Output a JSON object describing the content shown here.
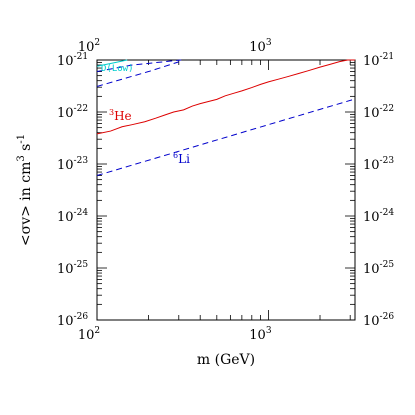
{
  "chart_data": {
    "type": "line",
    "x_scale": "log",
    "y_scale": "log",
    "xlim": [
      100,
      3200
    ],
    "ylim": [
      1e-26,
      1e-21
    ],
    "xlabel": {
      "main": "m",
      "unit": "(GeV)"
    },
    "ylabel": {
      "pre": "<σv> in cm",
      "sup1": "3",
      "mid": " s",
      "sup2": "-1"
    },
    "x_ticks": [
      {
        "value": 100,
        "base": "10",
        "exp": "2"
      },
      {
        "value": 1000,
        "base": "10",
        "exp": "3"
      }
    ],
    "y_ticks": [
      {
        "value": 1e-26,
        "base": "10",
        "exp": "-26"
      },
      {
        "value": 1e-25,
        "base": "10",
        "exp": "-25"
      },
      {
        "value": 1e-24,
        "base": "10",
        "exp": "-24"
      },
      {
        "value": 1e-23,
        "base": "10",
        "exp": "-23"
      },
      {
        "value": 1e-22,
        "base": "10",
        "exp": "-22"
      },
      {
        "value": 1e-21,
        "base": "10",
        "exp": "-21"
      }
    ],
    "grid": false,
    "series": [
      {
        "name": "3He",
        "label_sup": "3",
        "label_base": "He",
        "color": "#dd0000",
        "dash": "solid",
        "x": [
          100,
          120,
          140,
          160,
          190,
          220,
          250,
          280,
          320,
          360,
          400,
          450,
          500,
          560,
          630,
          700,
          800,
          900,
          1000,
          1150,
          1300,
          1500,
          1700,
          2000,
          2300,
          2600,
          2900,
          3200
        ],
        "y": [
          3.8e-23,
          4.3e-23,
          5.2e-23,
          5.7e-23,
          6.5e-23,
          7.6e-23,
          8.8e-23,
          1e-22,
          1.1e-22,
          1.3e-22,
          1.45e-22,
          1.6e-22,
          1.75e-22,
          2.05e-22,
          2.3e-22,
          2.55e-22,
          2.95e-22,
          3.4e-22,
          3.8e-22,
          4.3e-22,
          4.8e-22,
          5.5e-22,
          6.2e-22,
          7.3e-22,
          8.3e-22,
          9.3e-22,
          1e-21,
          1e-21
        ]
      },
      {
        "name": "6Li",
        "label_sup": "6",
        "label_base": "Li",
        "color": "#0000cc",
        "dash": "dashed",
        "x": [
          100,
          3200
        ],
        "y": [
          6e-24,
          1.78e-22
        ]
      },
      {
        "name": "D(Low)",
        "label_text": "D(Low)",
        "color": "#00cccc",
        "dash": "solid",
        "x": [
          100,
          125,
          150
        ],
        "y": [
          7.6e-22,
          8.8e-22,
          1e-21
        ]
      },
      {
        "name": "D(Low) dashed",
        "color": "#0000cc",
        "dash": "dashed",
        "x": [
          100,
          200,
          300
        ],
        "y": [
          3.1e-22,
          6e-22,
          9.2e-22
        ]
      },
      {
        "name": "D(Low) dashed upper",
        "color": "#0000cc",
        "dash": "dashed",
        "x": [
          100,
          160,
          310
        ],
        "y": [
          6e-22,
          8e-22,
          1e-21
        ]
      }
    ]
  }
}
